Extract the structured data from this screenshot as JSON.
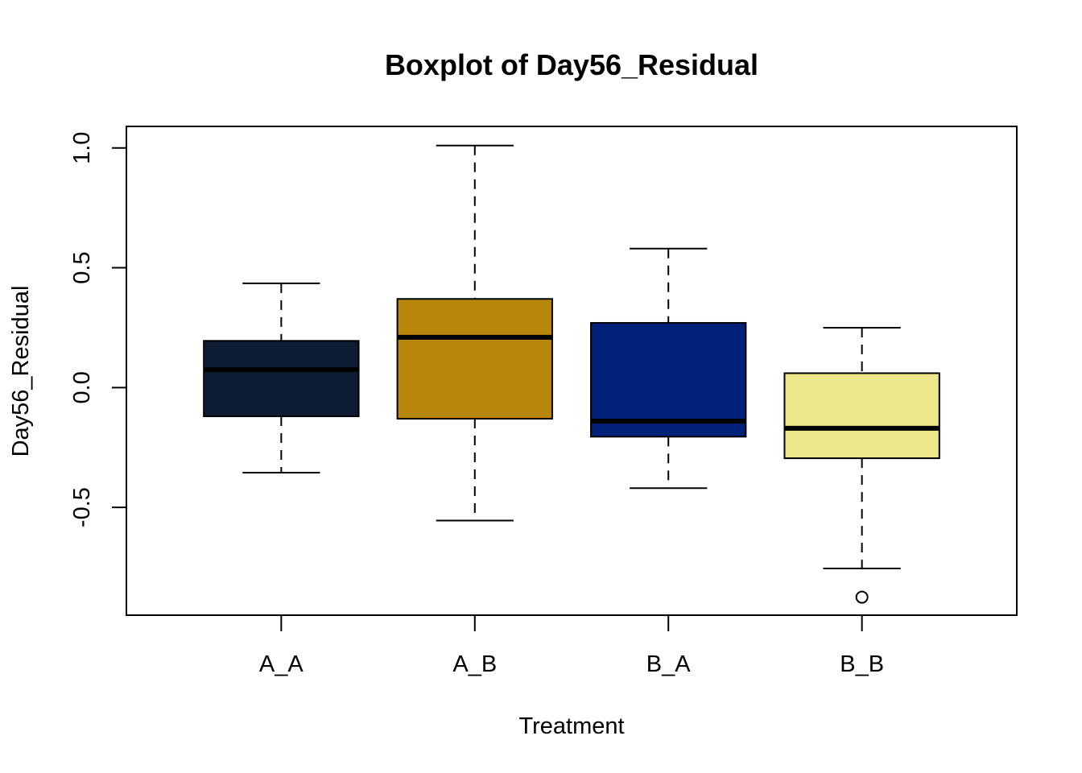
{
  "chart_data": {
    "type": "boxplot",
    "title": "Boxplot of Day56_Residual",
    "xlabel": "Treatment",
    "ylabel": "Day56_Residual",
    "ylim": [
      -0.95,
      1.09
    ],
    "yticks": [
      -0.5,
      0.0,
      0.5,
      1.0
    ],
    "ytick_labels": [
      "-0.5",
      "0.0",
      "0.5",
      "1.0"
    ],
    "grid": false,
    "legend": "none",
    "categories": [
      "A_A",
      "A_B",
      "B_A",
      "B_B"
    ],
    "boxes": [
      {
        "category": "A_A",
        "whisker_low": -0.355,
        "q1": -0.12,
        "median": 0.075,
        "q3": 0.195,
        "whisker_high": 0.435,
        "outliers": [],
        "color": "#0d1b33"
      },
      {
        "category": "A_B",
        "whisker_low": -0.555,
        "q1": -0.13,
        "median": 0.21,
        "q3": 0.37,
        "whisker_high": 1.01,
        "outliers": [],
        "color": "#b8860b"
      },
      {
        "category": "B_A",
        "whisker_low": -0.42,
        "q1": -0.205,
        "median": -0.14,
        "q3": 0.27,
        "whisker_high": 0.58,
        "outliers": [],
        "color": "#00207a"
      },
      {
        "category": "B_B",
        "whisker_low": -0.755,
        "q1": -0.295,
        "median": -0.17,
        "q3": 0.06,
        "whisker_high": 0.25,
        "outliers": [
          -0.875
        ],
        "color": "#eee68b"
      }
    ]
  }
}
